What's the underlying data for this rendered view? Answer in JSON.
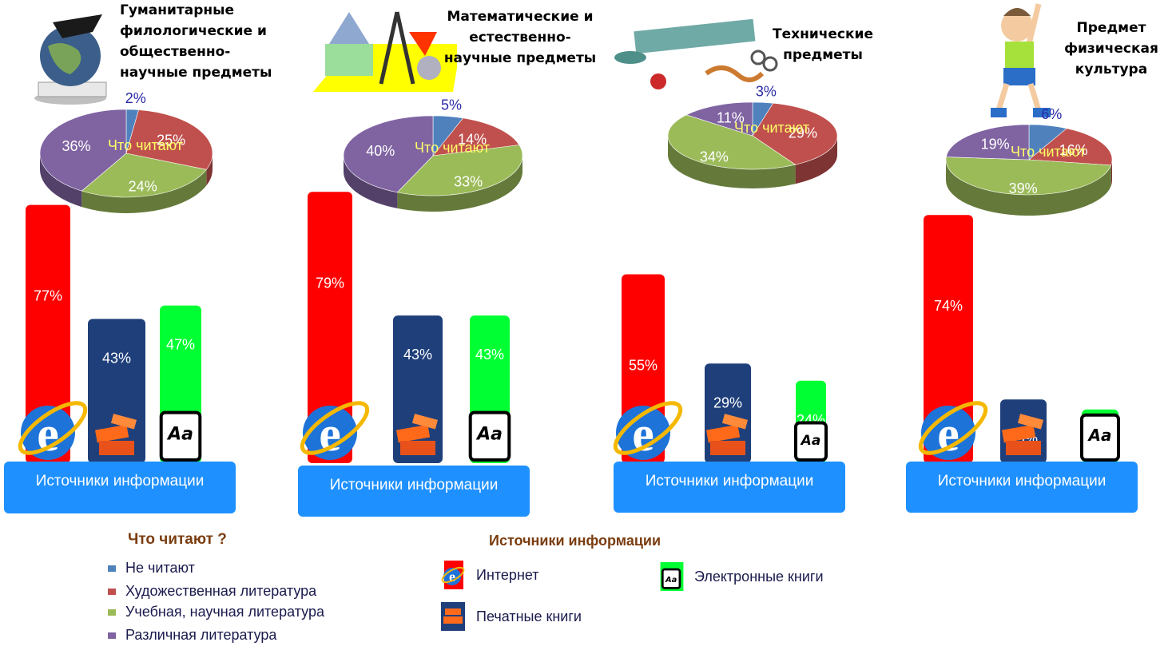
{
  "colors": {
    "not_reading": "#4f81bd",
    "fiction": "#c0504d",
    "educational": "#9bbb59",
    "various": "#8064a2",
    "internet": "#ff0000",
    "printed": "#1f3f7a",
    "ebooks": "#00ff33",
    "sources_box": "#1e90ff"
  },
  "chart_data": [
    {
      "type": "pie",
      "title": "Гуманитарные филологические и общественно-научные предметы",
      "center_label": "Что читают",
      "slices": [
        {
          "category": "Не читают",
          "value": 2,
          "label": "2%"
        },
        {
          "category": "Художественная литература",
          "value": 25,
          "label": "25%"
        },
        {
          "category": "Учебная, научная литература",
          "value": 24,
          "label": "24%"
        },
        {
          "category": "Различная литература",
          "value": 36,
          "label": "36%"
        }
      ],
      "sources": {
        "type": "bar",
        "label": "Источники информации",
        "categories": [
          "Интернет",
          "Печатные книги",
          "Электронные книги"
        ],
        "values": [
          77,
          43,
          47
        ],
        "labels": [
          "77%",
          "43%",
          "47%"
        ]
      }
    },
    {
      "type": "pie",
      "title": "Математические и естественно-научные предметы",
      "center_label": "Что читают",
      "slices": [
        {
          "category": "Не читают",
          "value": 5,
          "label": "5%"
        },
        {
          "category": "Художественная литература",
          "value": 14,
          "label": "14%"
        },
        {
          "category": "Учебная, научная литература",
          "value": 33,
          "label": "33%"
        },
        {
          "category": "Различная литература",
          "value": 40,
          "label": "40%"
        }
      ],
      "sources": {
        "type": "bar",
        "label": "Источники информации",
        "categories": [
          "Интернет",
          "Печатные книги",
          "Электронные книги"
        ],
        "values": [
          79,
          43,
          43
        ],
        "labels": [
          "79%",
          "43%",
          "43%"
        ]
      }
    },
    {
      "type": "pie",
      "title": "Технические предметы",
      "center_label": "Что читают",
      "slices": [
        {
          "category": "Не читают",
          "value": 3,
          "label": "3%"
        },
        {
          "category": "Художественная литература",
          "value": 29,
          "label": "29%"
        },
        {
          "category": "Учебная, научная литература",
          "value": 34,
          "label": "34%"
        },
        {
          "category": "Различная литература",
          "value": 11,
          "label": "11%"
        }
      ],
      "sources": {
        "type": "bar",
        "label": "Источники информации",
        "categories": [
          "Интернет",
          "Печатные книги",
          "Электронные книги"
        ],
        "values": [
          55,
          29,
          24
        ],
        "labels": [
          "55%",
          "29%",
          "24%"
        ]
      }
    },
    {
      "type": "pie",
      "title": "Предмет физическая культура",
      "center_label": "Что читают",
      "slices": [
        {
          "category": "Не читают",
          "value": 6,
          "label": "6%"
        },
        {
          "category": "Художественная литература",
          "value": 16,
          "label": "16%"
        },
        {
          "category": "Учебная, научная литература",
          "value": 39,
          "label": "39%"
        },
        {
          "category": "Различная литература",
          "value": 19,
          "label": "19%"
        }
      ],
      "sources": {
        "type": "bar",
        "label": "Источники информации",
        "categories": [
          "Интернет",
          "Печатные книги",
          "Электронные книги"
        ],
        "values": [
          74,
          19,
          16
        ],
        "labels": [
          "74%",
          "19%",
          "16%"
        ]
      }
    }
  ],
  "legend_reading": {
    "title": "Что читают ?",
    "items": [
      "Не читают",
      "Художественная литература",
      "Учебная, научная литература",
      "Различная литература"
    ]
  },
  "legend_sources": {
    "title": "Источники информации",
    "items": [
      "Интернет",
      "Печатные книги",
      "Электронные книги"
    ]
  },
  "icons": {
    "internet": "internet-explorer-icon",
    "printed": "printed-books-icon",
    "ebooks": "ebook-reader-icon",
    "ebook_glyph": "Aa"
  }
}
